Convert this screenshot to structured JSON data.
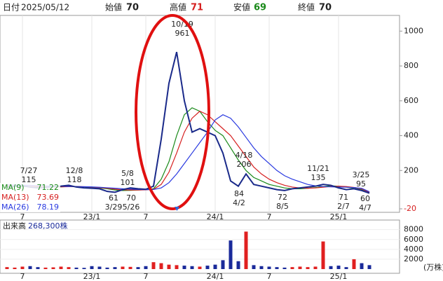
{
  "header": {
    "date_label": "日付",
    "date": "2025/05/12",
    "open_label": "始値",
    "open": 70,
    "high_label": "高値",
    "high": 71,
    "low_label": "安値",
    "low": 69,
    "close_label": "終値",
    "close": 70
  },
  "chart_data": [
    {
      "type": "line",
      "categories": [
        null,
        null,
        "7",
        null,
        null,
        null,
        null,
        null,
        null,
        null,
        null,
        "23/1",
        null,
        null,
        null,
        null,
        null,
        null,
        "7",
        null,
        null,
        null,
        null,
        null,
        null,
        null,
        null,
        "24/1",
        null,
        null,
        null,
        null,
        null,
        null,
        "7",
        null,
        null,
        null,
        null,
        null,
        null,
        null,
        null,
        "25/1",
        null,
        null,
        null,
        null
      ],
      "price": {
        "color": "#1a2a8a",
        "values": [
          105,
          110,
          112,
          105,
          100,
          102,
          108,
          110,
          115,
          105,
          100,
          98,
          95,
          80,
          75,
          90,
          100,
          95,
          92,
          110,
          380,
          700,
          880,
          600,
          420,
          440,
          420,
          400,
          300,
          140,
          110,
          180,
          120,
          110,
          100,
          90,
          85,
          95,
          100,
          105,
          110,
          120,
          115,
          100,
          90,
          95,
          85,
          70
        ]
      },
      "series": [
        {
          "name": "MA(9)",
          "last": 71.22,
          "color": "#1a8a1a",
          "values": [
            110,
            108,
            108,
            107,
            106,
            105,
            105,
            106,
            108,
            108,
            106,
            103,
            100,
            95,
            88,
            85,
            86,
            88,
            90,
            95,
            150,
            250,
            400,
            520,
            560,
            540,
            480,
            430,
            400,
            330,
            260,
            200,
            160,
            140,
            120,
            110,
            100,
            95,
            95,
            98,
            102,
            108,
            112,
            110,
            105,
            98,
            90,
            71
          ]
        },
        {
          "name": "MA(13)",
          "last": 73.69,
          "color": "#d62020",
          "values": [
            112,
            111,
            110,
            109,
            108,
            107,
            106,
            106,
            107,
            108,
            107,
            105,
            102,
            98,
            93,
            89,
            88,
            88,
            89,
            92,
            120,
            190,
            300,
            420,
            500,
            540,
            520,
            480,
            440,
            400,
            340,
            280,
            220,
            180,
            150,
            130,
            115,
            105,
            100,
            98,
            100,
            104,
            108,
            110,
            108,
            103,
            95,
            74
          ]
        },
        {
          "name": "MA(26)",
          "last": 78.19,
          "color": "#2a3ae0",
          "values": [
            118,
            117,
            116,
            115,
            113,
            112,
            110,
            109,
            108,
            108,
            107,
            106,
            104,
            101,
            98,
            95,
            93,
            91,
            90,
            91,
            100,
            130,
            180,
            240,
            300,
            360,
            420,
            490,
            520,
            500,
            450,
            390,
            330,
            280,
            240,
            200,
            170,
            150,
            135,
            120,
            112,
            108,
            106,
            105,
            104,
            102,
            98,
            78
          ]
        }
      ],
      "ylim": [
        -20,
        1090
      ],
      "yticks": [
        -20,
        200,
        400,
        600,
        800,
        1000
      ],
      "annotations": [
        {
          "date": "7/27",
          "value": 115
        },
        {
          "date": "12/8",
          "value": 118
        },
        {
          "date": "5/8",
          "value": 101
        },
        {
          "date": "10/19",
          "value": 961
        },
        {
          "date": "4/18",
          "value": 206
        },
        {
          "date": "11/21",
          "value": 135
        },
        {
          "date": "3/25",
          "value": 95
        },
        {
          "date": "3/29",
          "value": 61
        },
        {
          "date": "5/26",
          "value": 70
        },
        {
          "date": "4/2",
          "value": 84
        },
        {
          "date": "8/5",
          "value": 72
        },
        {
          "date": "2/7",
          "value": 71
        },
        {
          "date": "4/7",
          "value": 60
        }
      ]
    },
    {
      "type": "bar",
      "title": "出来高",
      "subtitle": "268,300株",
      "y_label": "(万株)",
      "categories": [
        null,
        null,
        "7",
        null,
        null,
        null,
        null,
        null,
        null,
        null,
        null,
        "23/1",
        null,
        null,
        null,
        null,
        null,
        null,
        "7",
        null,
        null,
        null,
        null,
        null,
        null,
        null,
        null,
        "24/1",
        null,
        null,
        null,
        null,
        null,
        null,
        "7",
        null,
        null,
        null,
        null,
        null,
        null,
        null,
        null,
        "25/1",
        null,
        null,
        null,
        null
      ],
      "up_color": "#e02020",
      "down_color": "#1a2a9a",
      "values": [
        400,
        300,
        500,
        600,
        400,
        300,
        350,
        500,
        400,
        300,
        250,
        600,
        500,
        300,
        400,
        500,
        450,
        400,
        600,
        1400,
        1200,
        900,
        800,
        700,
        600,
        500,
        700,
        900,
        1800,
        5800,
        1600,
        7600,
        800,
        600,
        500,
        400,
        300,
        400,
        500,
        400,
        500,
        5600,
        600,
        700,
        400,
        2000,
        1200,
        800
      ],
      "ylim": [
        0,
        9800
      ],
      "yticks": [
        2000,
        4000,
        6000,
        8000
      ]
    }
  ]
}
